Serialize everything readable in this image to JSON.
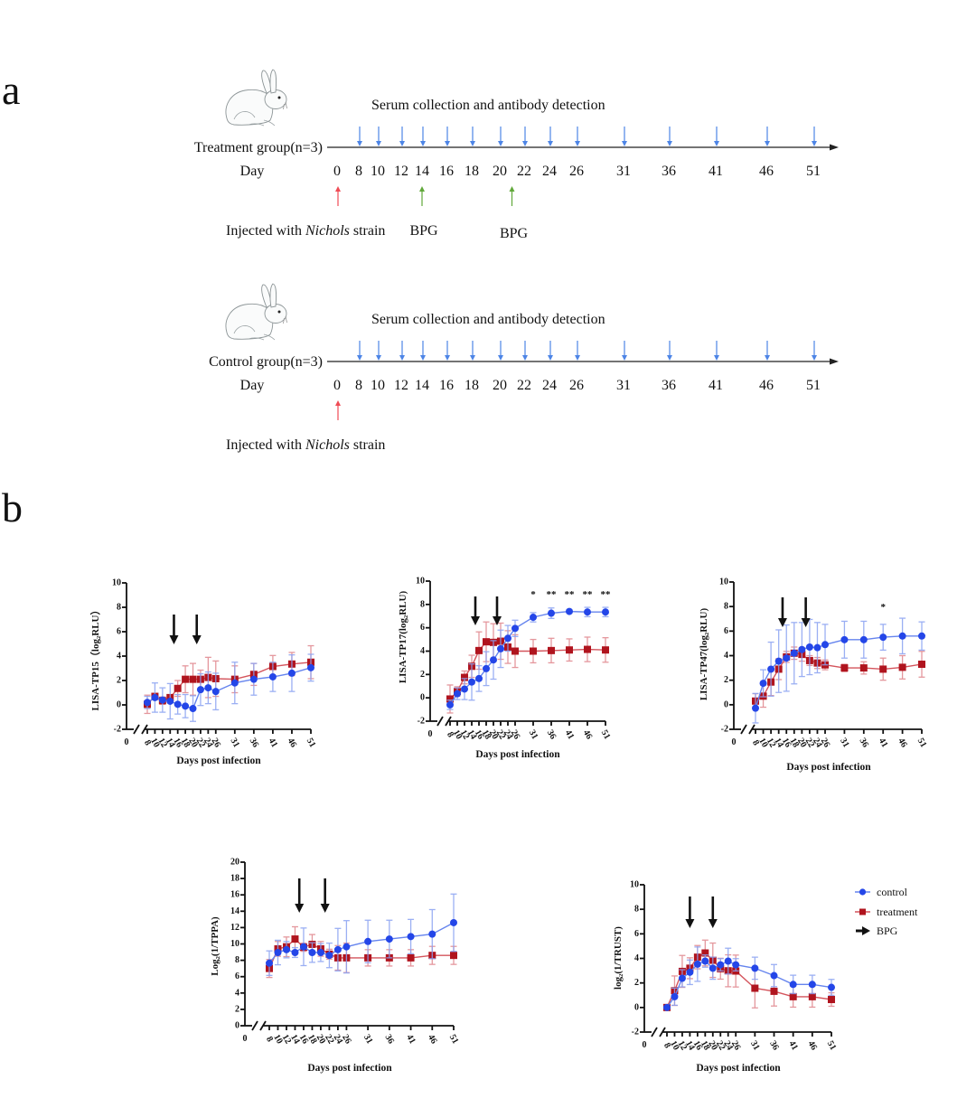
{
  "panel_a": {
    "label": "a",
    "timelines": [
      {
        "id": "treatment",
        "header": "Serum collection and antibody detection",
        "group_label": "Treatment group(n=3)",
        "day_label": "Day",
        "days": [
          "0",
          "8",
          "10",
          "12",
          "14",
          "16",
          "18",
          "20",
          "22",
          "24",
          "26",
          "31",
          "36",
          "41",
          "46",
          "51"
        ],
        "sampling_days": [
          8,
          10,
          12,
          14,
          16,
          18,
          20,
          22,
          24,
          26,
          31,
          36,
          41,
          46,
          51
        ],
        "injection": {
          "day": 0,
          "prefix": "Injected with ",
          "strain": "Nichols",
          "suffix": " strain"
        },
        "bpg": [
          {
            "day": 14,
            "label": "BPG"
          },
          {
            "day": 21,
            "label": "BPG"
          }
        ]
      },
      {
        "id": "control",
        "header": "Serum collection and antibody detection",
        "group_label": "Control group(n=3)",
        "day_label": "Day",
        "days": [
          "0",
          "8",
          "10",
          "12",
          "14",
          "16",
          "18",
          "20",
          "22",
          "24",
          "26",
          "31",
          "36",
          "41",
          "46",
          "51"
        ],
        "sampling_days": [
          8,
          10,
          12,
          14,
          16,
          18,
          20,
          22,
          24,
          26,
          31,
          36,
          41,
          46,
          51
        ],
        "injection": {
          "day": 0,
          "prefix": "Injected with ",
          "strain": "Nichols",
          "suffix": " strain"
        },
        "bpg": []
      }
    ]
  },
  "panel_b": {
    "label": "b"
  },
  "colors": {
    "control": {
      "marker": "#2446e8",
      "line": "#6584ee",
      "error": "#8aa2f2"
    },
    "treatment": {
      "marker": "#b0141e",
      "line": "#d4545c",
      "error": "#e0868c"
    },
    "bpg_arrow": "#111111",
    "timeline_sampling_arrow": "#4d85e6",
    "timeline_injection_arrow": "#ef4b55",
    "timeline_bpg_arrow": "#60a83a"
  },
  "legend": [
    {
      "label": "control",
      "series": "control",
      "marker": "circle"
    },
    {
      "label": "treatment",
      "series": "treatment",
      "marker": "square"
    },
    {
      "label": "BPG",
      "series": "bpg",
      "marker": "arrow"
    }
  ],
  "chart_data": [
    {
      "id": "lisa-tp15",
      "type": "line",
      "title": "",
      "ylabel": "LISA-TP15（log₂RLU）",
      "xlabel": "Days post infection",
      "x": [
        8,
        10,
        12,
        14,
        16,
        18,
        20,
        22,
        24,
        26,
        31,
        36,
        41,
        46,
        51
      ],
      "xtick_labels": [
        "8",
        "10",
        "12",
        "14",
        "16",
        "18",
        "20",
        "22",
        "24",
        "26",
        "31",
        "36",
        "41",
        "46",
        "51"
      ],
      "x_origin_label": "0",
      "x_axis_break": true,
      "ylim": [
        -2,
        10
      ],
      "yticks": [
        -2,
        0,
        2,
        4,
        6,
        8,
        10
      ],
      "grid": false,
      "series": [
        {
          "name": "treatment",
          "marker": "square",
          "values": [
            0.05,
            0.7,
            0.35,
            0.6,
            1.35,
            2.1,
            2.1,
            2.1,
            2.25,
            2.15,
            2.1,
            2.5,
            3.15,
            3.35,
            3.5
          ],
          "errors": [
            0.75,
            0.2,
            0.3,
            0.2,
            0.65,
            1.1,
            1.3,
            0.75,
            1.65,
            1.45,
            1.1,
            0.9,
            0.9,
            0.95,
            1.35
          ]
        },
        {
          "name": "control",
          "marker": "circle",
          "values": [
            0.2,
            0.6,
            0.4,
            0.3,
            0.05,
            -0.1,
            -0.3,
            1.25,
            1.4,
            1.1,
            1.8,
            2.1,
            2.3,
            2.6,
            3.05
          ],
          "errors": [
            0.5,
            1.2,
            1.0,
            1.45,
            0.8,
            0.95,
            1.05,
            1.3,
            1.3,
            1.5,
            1.7,
            1.3,
            1.2,
            1.5,
            1.1
          ]
        }
      ],
      "bpg_arrow_days": [
        15,
        21
      ],
      "significance": []
    },
    {
      "id": "lisa-tp17",
      "type": "line",
      "title": "",
      "ylabel": "LISA-TP17(log₂RLU)",
      "xlabel": "Days post infection",
      "x": [
        8,
        10,
        12,
        14,
        16,
        18,
        20,
        22,
        24,
        26,
        31,
        36,
        41,
        46,
        51
      ],
      "xtick_labels": [
        "8",
        "10",
        "12",
        "14",
        "16",
        "18",
        "20",
        "22",
        "24",
        "26",
        "31",
        "36",
        "41",
        "46",
        "51"
      ],
      "x_origin_label": "0",
      "x_axis_break": true,
      "ylim": [
        -2,
        10
      ],
      "yticks": [
        -2,
        0,
        2,
        4,
        6,
        8,
        10
      ],
      "grid": false,
      "series": [
        {
          "name": "treatment",
          "marker": "square",
          "values": [
            -0.1,
            0.55,
            1.75,
            2.7,
            4.05,
            4.8,
            4.75,
            4.85,
            4.35,
            4.0,
            4.0,
            4.05,
            4.1,
            4.15,
            4.1
          ],
          "errors": [
            1.2,
            0.4,
            0.55,
            0.95,
            1.6,
            1.7,
            1.6,
            1.55,
            1.4,
            1.4,
            1.0,
            1.05,
            0.95,
            1.05,
            1.05
          ]
        },
        {
          "name": "control",
          "marker": "circle",
          "values": [
            -0.6,
            0.35,
            0.75,
            1.35,
            1.65,
            2.5,
            3.25,
            4.2,
            5.1,
            5.95,
            6.9,
            7.25,
            7.4,
            7.35,
            7.35
          ],
          "errors": [
            0.4,
            0.5,
            0.9,
            1.55,
            1.1,
            1.45,
            1.65,
            1.6,
            1.1,
            0.7,
            0.4,
            0.45,
            0.15,
            0.4,
            0.4
          ]
        }
      ],
      "bpg_arrow_days": [
        15,
        21
      ],
      "significance": [
        {
          "day": 31,
          "label": "*"
        },
        {
          "day": 36,
          "label": "**"
        },
        {
          "day": 41,
          "label": "**"
        },
        {
          "day": 46,
          "label": "**"
        },
        {
          "day": 51,
          "label": "**"
        }
      ]
    },
    {
      "id": "lisa-tp47",
      "type": "line",
      "title": "",
      "ylabel": "LISA-TP47(log₂RLU)",
      "xlabel": "Days post infection",
      "x": [
        8,
        10,
        12,
        14,
        16,
        18,
        20,
        22,
        24,
        26,
        31,
        36,
        41,
        46,
        51
      ],
      "xtick_labels": [
        "8",
        "10",
        "12",
        "14",
        "16",
        "18",
        "20",
        "22",
        "24",
        "26",
        "31",
        "36",
        "41",
        "46",
        "51"
      ],
      "x_origin_label": "0",
      "x_axis_break": true,
      "ylim": [
        -2,
        10
      ],
      "yticks": [
        -2,
        0,
        2,
        4,
        6,
        8,
        10
      ],
      "grid": false,
      "series": [
        {
          "name": "treatment",
          "marker": "square",
          "values": [
            0.3,
            0.7,
            1.85,
            2.9,
            3.9,
            4.2,
            4.1,
            3.6,
            3.4,
            3.25,
            3.0,
            3.0,
            2.9,
            3.05,
            3.3
          ],
          "errors": [
            0.6,
            0.9,
            1.1,
            0.85,
            0.45,
            0.5,
            0.55,
            0.4,
            0.45,
            0.4,
            0.3,
            0.5,
            0.9,
            0.95,
            1.05
          ]
        },
        {
          "name": "control",
          "marker": "circle",
          "values": [
            -0.28,
            1.75,
            2.9,
            3.55,
            3.8,
            4.2,
            4.5,
            4.7,
            4.65,
            4.9,
            5.3,
            5.3,
            5.5,
            5.6,
            5.6
          ],
          "errors": [
            1.2,
            1.1,
            2.2,
            2.55,
            2.7,
            2.5,
            2.2,
            2.25,
            2.05,
            1.65,
            1.5,
            1.5,
            1.05,
            1.45,
            1.15
          ]
        }
      ],
      "bpg_arrow_days": [
        15,
        21
      ],
      "significance": [
        {
          "day": 41,
          "label": "*"
        }
      ]
    },
    {
      "id": "tppa",
      "type": "line",
      "title": "",
      "ylabel": "Log₂(1/TPPA)",
      "xlabel": "Days post infection",
      "x": [
        8,
        10,
        12,
        14,
        16,
        18,
        20,
        22,
        24,
        26,
        31,
        36,
        41,
        46,
        51
      ],
      "xtick_labels": [
        "8",
        "10",
        "12",
        "14",
        "16",
        "18",
        "20",
        "22",
        "24",
        "26",
        "31",
        "36",
        "41",
        "46",
        "51"
      ],
      "x_origin_label": "0",
      "x_axis_break": true,
      "ylim": [
        0,
        20
      ],
      "yticks": [
        0,
        2,
        4,
        6,
        8,
        10,
        12,
        14,
        16,
        18,
        20
      ],
      "grid": false,
      "series": [
        {
          "name": "treatment",
          "marker": "square",
          "values": [
            7.0,
            9.4,
            9.65,
            10.6,
            9.6,
            9.95,
            9.4,
            8.75,
            8.3,
            8.3,
            8.3,
            8.3,
            8.3,
            8.6,
            8.6
          ],
          "errors": [
            1.1,
            0.9,
            1.2,
            1.5,
            0.5,
            1.2,
            0.9,
            0.6,
            1.5,
            1.8,
            1.0,
            1.0,
            1.0,
            1.1,
            1.1
          ]
        },
        {
          "name": "control",
          "marker": "circle",
          "values": [
            7.65,
            8.95,
            9.3,
            8.95,
            9.65,
            8.95,
            8.95,
            8.6,
            9.3,
            9.65,
            10.3,
            10.6,
            10.9,
            11.2,
            12.6
          ],
          "errors": [
            1.5,
            1.5,
            1.0,
            0.6,
            2.3,
            1.2,
            1.1,
            1.5,
            2.6,
            3.2,
            2.6,
            2.3,
            2.1,
            3.0,
            3.5
          ]
        }
      ],
      "bpg_arrow_days": [
        15,
        21
      ],
      "significance": []
    },
    {
      "id": "trust",
      "type": "line",
      "title": "",
      "ylabel": "log₂(1/TRUST)",
      "xlabel": "Days post infection",
      "x": [
        8,
        10,
        12,
        14,
        16,
        18,
        20,
        22,
        24,
        26,
        31,
        36,
        41,
        46,
        51
      ],
      "xtick_labels": [
        "8",
        "10",
        "12",
        "14",
        "16",
        "18",
        "20",
        "22",
        "24",
        "26",
        "31",
        "36",
        "41",
        "46",
        "51"
      ],
      "x_origin_label": "0",
      "x_axis_break": true,
      "ylim": [
        -2,
        10
      ],
      "yticks": [
        -2,
        0,
        2,
        4,
        6,
        8,
        10
      ],
      "grid": false,
      "legend_position": "right",
      "series": [
        {
          "name": "treatment",
          "marker": "square",
          "values": [
            0.0,
            1.37,
            2.94,
            3.2,
            4.1,
            4.44,
            3.85,
            3.16,
            2.99,
            2.97,
            1.57,
            1.32,
            0.88,
            0.88,
            0.65
          ],
          "errors": [
            0.1,
            1.2,
            1.3,
            0.85,
            0.95,
            1.05,
            1.4,
            0.85,
            1.3,
            1.3,
            1.6,
            1.2,
            0.85,
            0.85,
            0.55
          ]
        },
        {
          "name": "control",
          "marker": "circle",
          "values": [
            0.0,
            0.88,
            2.38,
            2.87,
            3.53,
            3.78,
            3.2,
            3.48,
            3.78,
            3.48,
            3.2,
            2.6,
            1.88,
            1.88,
            1.64
          ],
          "errors": [
            0.1,
            0.7,
            0.7,
            1.0,
            1.4,
            0.5,
            0.9,
            0.5,
            1.05,
            0.5,
            0.9,
            0.9,
            0.75,
            0.75,
            0.65
          ]
        }
      ],
      "bpg_arrow_days": [
        14,
        20
      ],
      "significance": []
    }
  ]
}
